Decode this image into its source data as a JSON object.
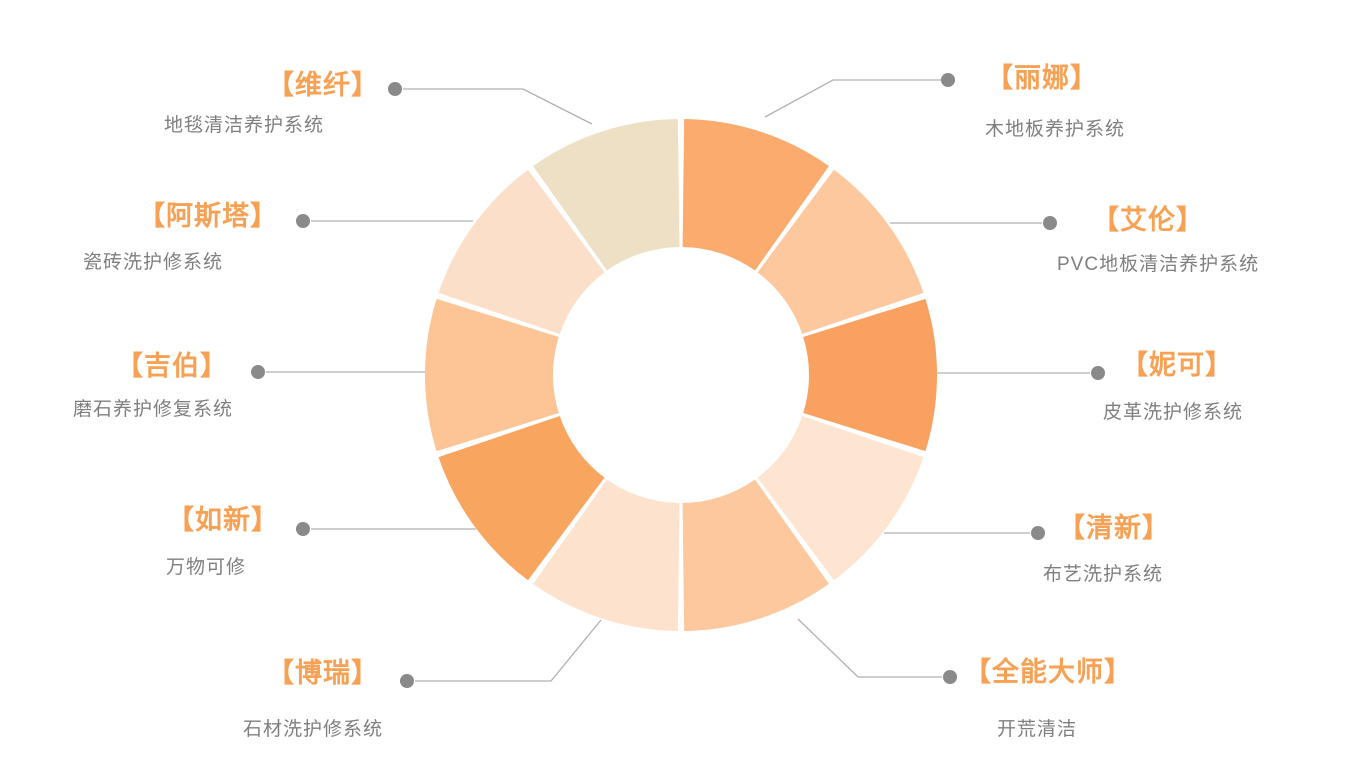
{
  "page": {
    "background_color": "#ffffff",
    "brand_text_color": "#F7A155",
    "desc_text_color": "#7F7F7F",
    "connector_line_color": "#B0B0B0",
    "connector_dot_color": "#8A8A8A"
  },
  "chart_data": {
    "type": "pie",
    "variant": "donut",
    "title": "",
    "equal_slices": true,
    "slice_angle_deg": 36,
    "start_position": "12-o-clock, clockwise",
    "inner_radius_ratio": 0.5,
    "items": [
      {
        "brand": "【丽娜】",
        "desc": "木地板养护系统",
        "value": 1,
        "color": "#FBAB6E",
        "side": "right"
      },
      {
        "brand": "【艾伦】",
        "desc": "PVC地板清洁养护系统",
        "value": 1,
        "color": "#FEC89E",
        "side": "right"
      },
      {
        "brand": "【妮可】",
        "desc": "皮革洗护修系统",
        "value": 1,
        "color": "#F8A161",
        "side": "right"
      },
      {
        "brand": "【清新】",
        "desc": "布艺洗护系统",
        "value": 1,
        "color": "#FDE5D1",
        "side": "right"
      },
      {
        "brand": "【全能大师】",
        "desc": "开荒清洁",
        "value": 1,
        "color": "#FEC89F",
        "side": "right"
      },
      {
        "brand": "【博瑞】",
        "desc": "石材洗护修系统",
        "value": 1,
        "color": "#FDE3CE",
        "side": "left"
      },
      {
        "brand": "【如新】",
        "desc": "万物可修",
        "value": 1,
        "color": "#F8A55F",
        "side": "left"
      },
      {
        "brand": "【吉伯】",
        "desc": "磨石养护修复系统",
        "value": 1,
        "color": "#FDC496",
        "side": "left"
      },
      {
        "brand": "【阿斯塔】",
        "desc": "瓷砖洗护修系统",
        "value": 1,
        "color": "#FCDFC9",
        "side": "left"
      },
      {
        "brand": "【维纤】",
        "desc": "地毯清洁养护系统",
        "value": 1,
        "color": "#EDE0C5",
        "side": "left"
      }
    ]
  }
}
